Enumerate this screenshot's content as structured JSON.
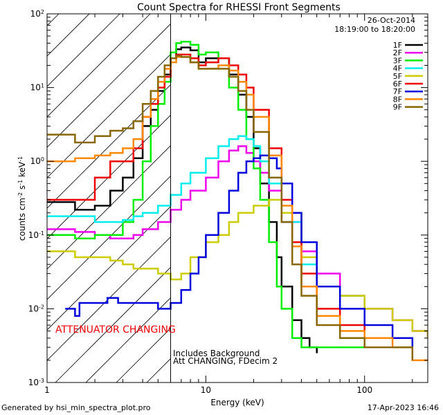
{
  "chart_data": {
    "type": "line",
    "title": "Count Spectra for RHESSI Front Segments",
    "date": "26-Oct-2014",
    "time_range": "18:19:00 to 18:20:00",
    "xlabel": "Energy (keV)",
    "ylabel_main": "counts cm",
    "ylabel_exp1": "-2",
    "ylabel_mid": " s",
    "ylabel_exp2": "-1",
    "ylabel_end": " keV",
    "ylabel_exp3": "-1",
    "xscale": "log",
    "yscale": "log",
    "xlim": [
      1,
      250
    ],
    "ylim": [
      0.001,
      100
    ],
    "x_ticks": [
      {
        "value": 1,
        "label": "1"
      },
      {
        "value": 10,
        "label": "10"
      },
      {
        "value": 100,
        "label": "100"
      }
    ],
    "y_ticks": [
      {
        "value": 0.001,
        "base": "10",
        "exp": "-3"
      },
      {
        "value": 0.01,
        "base": "10",
        "exp": "-2"
      },
      {
        "value": 0.1,
        "base": "10",
        "exp": "-1"
      },
      {
        "value": 1,
        "base": "10",
        "exp": "0"
      },
      {
        "value": 10,
        "base": "10",
        "exp": "1"
      },
      {
        "value": 100,
        "base": "10",
        "exp": "2"
      }
    ],
    "attenuator_boundary_kev": 6,
    "annotations": {
      "attenuator": "ATTENUATOR CHANGING",
      "background": "Includes Background",
      "att_info": "Att CHANGING, FDecim 2"
    },
    "legend_position": "top-right",
    "series": [
      {
        "name": "1F",
        "color": "#000000",
        "x": [
          1,
          1.5,
          2,
          2.5,
          3,
          3.5,
          4,
          4.5,
          5,
          5.5,
          6,
          6.5,
          7,
          8,
          9,
          10,
          12,
          14,
          16,
          18,
          20,
          22,
          25,
          28,
          30,
          35,
          40,
          45,
          50
        ],
        "values": [
          0.28,
          0.22,
          0.25,
          0.4,
          0.6,
          1.1,
          3,
          5,
          9,
          15,
          25,
          33,
          35,
          32,
          22,
          25,
          25,
          15,
          8,
          4,
          1.5,
          0.5,
          0.15,
          0.05,
          0.02,
          0.007,
          0.004,
          0.003,
          0.0025
        ]
      },
      {
        "name": "2F",
        "color": "#ee00ee",
        "x": [
          1,
          1.5,
          2,
          2.5,
          3,
          3.5,
          4,
          5,
          6,
          7,
          8,
          10,
          12,
          14,
          16,
          18,
          20,
          22,
          25,
          30,
          40,
          50,
          70,
          100,
          150,
          200,
          250
        ],
        "values": [
          0.12,
          0.11,
          0.1,
          0.09,
          0.09,
          0.1,
          0.12,
          0.15,
          0.22,
          0.3,
          0.4,
          0.6,
          1.0,
          1.4,
          1.6,
          1.3,
          1.0,
          0.7,
          0.4,
          0.15,
          0.06,
          0.03,
          0.015,
          0.01,
          0.007,
          0.005,
          0.004
        ]
      },
      {
        "name": "3F",
        "color": "#00ee00",
        "x": [
          1,
          1.5,
          2,
          2.5,
          3,
          3.5,
          4,
          4.5,
          5,
          5.5,
          6,
          6.5,
          7,
          8,
          9,
          10,
          12,
          14,
          16,
          18,
          20,
          22,
          25,
          28,
          30,
          35,
          40,
          45,
          50,
          70,
          100
        ],
        "values": [
          0.1,
          0.09,
          0.1,
          0.1,
          0.15,
          0.3,
          1.0,
          3,
          6,
          12,
          30,
          40,
          42,
          38,
          28,
          30,
          25,
          10,
          5,
          2,
          0.8,
          0.3,
          0.08,
          0.02,
          0.01,
          0.004,
          0.003,
          0.003,
          0.003,
          0.003,
          0.003
        ]
      },
      {
        "name": "4F",
        "color": "#00eeee",
        "x": [
          1,
          1.5,
          2,
          2.5,
          3,
          3.5,
          4,
          5,
          6,
          7,
          8,
          10,
          12,
          14,
          16,
          18,
          20,
          22,
          25,
          30,
          40,
          50,
          70,
          100
        ],
        "values": [
          0.18,
          0.18,
          0.15,
          0.15,
          0.16,
          0.18,
          0.2,
          0.25,
          0.35,
          0.5,
          0.7,
          1.1,
          1.6,
          2.0,
          2.2,
          2.0,
          1.6,
          1.0,
          0.5,
          0.15,
          0.04,
          0.02,
          0.015,
          0.01
        ]
      },
      {
        "name": "5F",
        "color": "#cccc00",
        "x": [
          1,
          1.5,
          2,
          2.5,
          3,
          3.5,
          4,
          5,
          6,
          7,
          8,
          10,
          12,
          14,
          16,
          20,
          25,
          30,
          40,
          50,
          70,
          100,
          150,
          200,
          250
        ],
        "values": [
          0.06,
          0.05,
          0.05,
          0.045,
          0.04,
          0.035,
          0.035,
          0.03,
          0.025,
          0.03,
          0.05,
          0.08,
          0.1,
          0.15,
          0.2,
          0.25,
          0.3,
          0.2,
          0.05,
          0.02,
          0.015,
          0.01,
          0.007,
          0.005,
          0.004
        ]
      },
      {
        "name": "6F",
        "color": "#ee0000",
        "x": [
          1,
          1.5,
          2,
          2.5,
          3,
          3.5,
          4,
          4.5,
          5,
          5.5,
          6,
          6.5,
          7,
          8,
          9,
          10,
          12,
          14,
          16,
          18,
          20,
          25,
          30,
          35,
          40,
          50,
          70,
          100
        ],
        "values": [
          0.3,
          0.3,
          0.6,
          1.0,
          1.0,
          1.5,
          4,
          6,
          10,
          14,
          25,
          28,
          28,
          25,
          20,
          22,
          25,
          20,
          15,
          10,
          5,
          1.5,
          0.3,
          0.08,
          0.03,
          0.01,
          0.006,
          0.005
        ]
      },
      {
        "name": "7F",
        "color": "#0000dd",
        "x": [
          1.3,
          1.5,
          1.6,
          2,
          2.4,
          2.8,
          3.3,
          4,
          4.5,
          5,
          6,
          7,
          8,
          9,
          10,
          12,
          14,
          16,
          18,
          20,
          22,
          25,
          28,
          30,
          35,
          40,
          50,
          70,
          100,
          150,
          200
        ],
        "values": [
          0.01,
          0.008,
          0.012,
          0.012,
          0.014,
          0.012,
          0.012,
          0.012,
          0.012,
          0.01,
          0.012,
          0.018,
          0.03,
          0.05,
          0.1,
          0.2,
          0.4,
          0.7,
          1.0,
          1.1,
          1.2,
          1.1,
          0.8,
          0.5,
          0.2,
          0.08,
          0.02,
          0.01,
          0.006,
          0.004,
          0.003
        ]
      },
      {
        "name": "8F",
        "color": "#ff8800",
        "x": [
          1,
          1.5,
          2,
          2.5,
          3,
          3.5,
          4,
          4.5,
          5,
          5.5,
          6,
          6.5,
          7,
          8,
          9,
          10,
          12,
          14,
          16,
          18,
          20,
          25,
          30,
          35,
          40,
          50,
          70,
          100,
          150,
          200,
          250
        ],
        "values": [
          1.0,
          1.1,
          1.2,
          1.3,
          1.5,
          2.0,
          4,
          7,
          12,
          18,
          22,
          26,
          26,
          22,
          18,
          18,
          20,
          17,
          12,
          8,
          4,
          1.2,
          0.25,
          0.07,
          0.02,
          0.008,
          0.005,
          0.004,
          0.003,
          0.002,
          0.002
        ]
      },
      {
        "name": "9F",
        "color": "#886600",
        "x": [
          1,
          1.5,
          2,
          2.5,
          3,
          3.5,
          4,
          4.5,
          5,
          5.5,
          6,
          6.5,
          7,
          8,
          9,
          10,
          12,
          14,
          16,
          18,
          20,
          25,
          30,
          35,
          40,
          50,
          70,
          100,
          150,
          200
        ],
        "values": [
          2.3,
          1.8,
          2.2,
          2.6,
          2.8,
          3.5,
          6,
          9,
          14,
          20,
          25,
          27,
          26,
          22,
          18,
          18,
          18,
          14,
          9,
          5,
          2.5,
          0.6,
          0.15,
          0.04,
          0.015,
          0.006,
          0.004,
          0.003,
          0.003,
          0.002
        ]
      }
    ]
  },
  "footer": {
    "generated_by": "Generated by hsi_min_spectra_plot.pro",
    "timestamp": "17-Apr-2023 16:46"
  }
}
